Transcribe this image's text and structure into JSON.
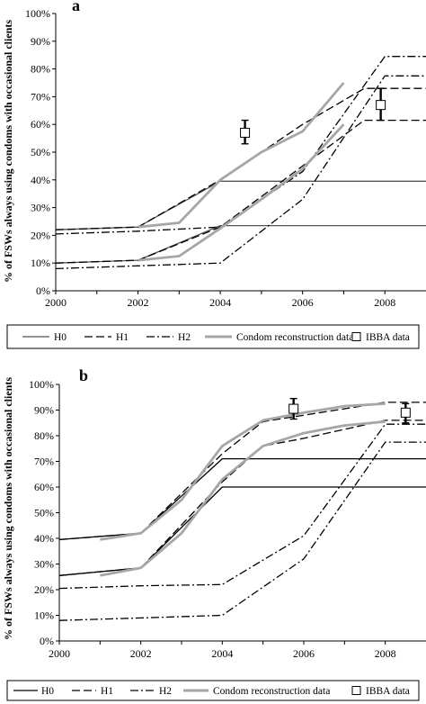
{
  "chart_data": [
    {
      "type": "line",
      "panel_label": "a",
      "ylabel": "% of FSWs always using condoms with occasional clients",
      "xlim": [
        2000,
        2009
      ],
      "ylim": [
        0,
        100
      ],
      "x_ticks": [
        "2000",
        "2002",
        "2004",
        "2006",
        "2008"
      ],
      "y_ticks": [
        "0%",
        "10%",
        "20%",
        "30%",
        "40%",
        "50%",
        "60%",
        "70%",
        "80%",
        "90%",
        "100%"
      ],
      "grid": false,
      "legend_position": "bottom",
      "series": [
        {
          "name": "H0",
          "style": "solid",
          "color": "#555555",
          "lines": [
            {
              "x": [
                2000,
                2002,
                2004,
                2009
              ],
              "y": [
                22,
                23,
                39.5,
                39.5
              ]
            },
            {
              "x": [
                2000,
                2002,
                2004,
                2009
              ],
              "y": [
                10,
                11,
                23.5,
                23.5
              ]
            }
          ]
        },
        {
          "name": "H1",
          "style": "dashed",
          "color": "#000000",
          "lines": [
            {
              "x": [
                2000,
                2002,
                2004,
                2006,
                2007.5,
                2009
              ],
              "y": [
                22,
                23,
                40,
                60,
                73,
                73
              ]
            },
            {
              "x": [
                2000,
                2002,
                2004,
                2006,
                2007.5,
                2009
              ],
              "y": [
                10,
                11,
                23,
                45,
                61.5,
                61.5
              ]
            }
          ]
        },
        {
          "name": "H2",
          "style": "dashdot",
          "color": "#000000",
          "lines": [
            {
              "x": [
                2000,
                2002,
                2004,
                2006,
                2008,
                2009
              ],
              "y": [
                20.5,
                21.5,
                23,
                43,
                84.5,
                84.5
              ]
            },
            {
              "x": [
                2000,
                2002,
                2004,
                2006,
                2008,
                2009
              ],
              "y": [
                8,
                9,
                10,
                33,
                77.5,
                77.5
              ]
            }
          ]
        },
        {
          "name": "Condom reconstruction data",
          "style": "solid-gray",
          "color": "#a6a6a6",
          "lines": [
            {
              "x": [
                2002,
                2003,
                2004,
                2005,
                2006,
                2007
              ],
              "y": [
                23,
                24.5,
                40,
                50,
                57.5,
                75
              ]
            },
            {
              "x": [
                2002,
                2003,
                2004,
                2005,
                2006,
                2007
              ],
              "y": [
                11,
                12.5,
                22.5,
                33,
                44,
                60
              ]
            }
          ]
        },
        {
          "name": "IBBA data",
          "style": "marker",
          "color": "#000000",
          "points": [
            {
              "x": 2004.6,
              "y": 57,
              "low": 53,
              "high": 61.5
            },
            {
              "x": 2007.9,
              "y": 67,
              "low": 61.5,
              "high": 73
            }
          ]
        }
      ]
    },
    {
      "type": "line",
      "panel_label": "b",
      "ylabel": "% of FSWs always using condoms with occasional clients",
      "xlim": [
        2000,
        2009
      ],
      "ylim": [
        0,
        100
      ],
      "x_ticks": [
        "2000",
        "2002",
        "2004",
        "2006",
        "2008"
      ],
      "y_ticks": [
        "0%",
        "10%",
        "20%",
        "30%",
        "40%",
        "50%",
        "60%",
        "70%",
        "80%",
        "90%",
        "100%"
      ],
      "grid": false,
      "legend_position": "bottom",
      "series": [
        {
          "name": "H0",
          "style": "solid",
          "color": "#000000",
          "lines": [
            {
              "x": [
                2000,
                2002,
                2004,
                2009
              ],
              "y": [
                39.5,
                42,
                71,
                71
              ]
            },
            {
              "x": [
                2000,
                2002,
                2004,
                2009
              ],
              "y": [
                25.5,
                28.5,
                60,
                60
              ]
            }
          ]
        },
        {
          "name": "H1",
          "style": "dashed",
          "color": "#000000",
          "lines": [
            {
              "x": [
                2000,
                2002,
                2004,
                2005,
                2006,
                2008,
                2009
              ],
              "y": [
                39.5,
                42,
                73,
                85.5,
                88,
                93,
                93
              ]
            },
            {
              "x": [
                2000,
                2002,
                2004,
                2005,
                2006,
                2008,
                2009
              ],
              "y": [
                25.5,
                28.5,
                62,
                76,
                79,
                86,
                86
              ]
            }
          ]
        },
        {
          "name": "H2",
          "style": "dashdot",
          "color": "#000000",
          "lines": [
            {
              "x": [
                2000,
                2002,
                2004,
                2006,
                2008,
                2009
              ],
              "y": [
                20.5,
                21.5,
                22,
                41,
                84.5,
                84.5
              ]
            },
            {
              "x": [
                2000,
                2002,
                2004,
                2006,
                2008,
                2009
              ],
              "y": [
                8,
                9,
                10,
                32,
                77.5,
                77.5
              ]
            }
          ]
        },
        {
          "name": "Condom reconstruction data",
          "style": "solid-gray",
          "color": "#a6a6a6",
          "lines": [
            {
              "x": [
                2001,
                2002,
                2003,
                2004,
                2005,
                2006,
                2007,
                2008
              ],
              "y": [
                39.5,
                42,
                55,
                76,
                86,
                89,
                91.5,
                92.5
              ]
            },
            {
              "x": [
                2001,
                2002,
                2003,
                2004,
                2005,
                2006,
                2007,
                2008
              ],
              "y": [
                25.5,
                28.5,
                42,
                63,
                76,
                81,
                84,
                85.5
              ]
            }
          ]
        },
        {
          "name": "IBBA data",
          "style": "marker",
          "color": "#000000",
          "points": [
            {
              "x": 2005.75,
              "y": 90.5,
              "low": 86.5,
              "high": 94.5
            },
            {
              "x": 2008.5,
              "y": 89,
              "low": 85,
              "high": 92.5
            }
          ]
        }
      ]
    }
  ]
}
